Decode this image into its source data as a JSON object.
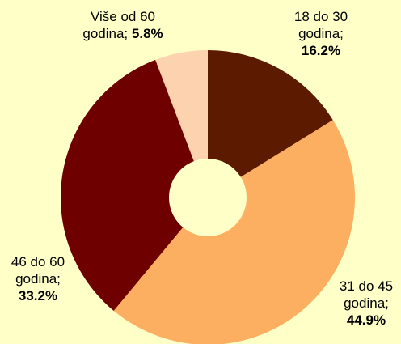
{
  "chart_data": {
    "type": "donut",
    "categories": [
      "18 do 30 godina",
      "31 do 45 godina",
      "46 do 60 godina",
      "Više od 60 godina"
    ],
    "label_separator": ";",
    "values": [
      16.2,
      44.9,
      33.2,
      5.8
    ],
    "value_labels": [
      "16.2%",
      "44.9%",
      "33.2%",
      "5.8%"
    ],
    "colors": [
      "#5c1a00",
      "#fcaf60",
      "#6e0000",
      "#fdd2ae"
    ]
  }
}
